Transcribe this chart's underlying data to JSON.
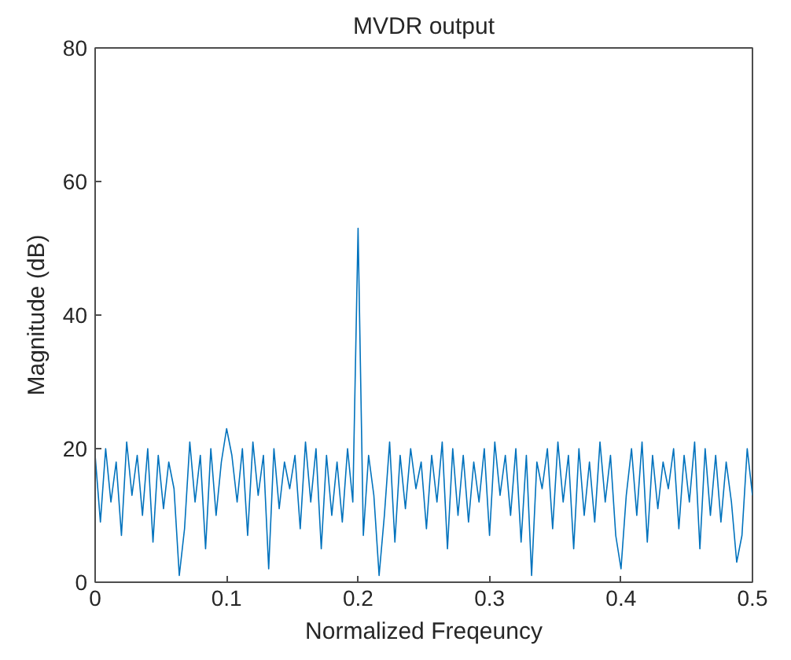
{
  "chart_data": {
    "type": "line",
    "title": "MVDR output",
    "xlabel": "Normalized Freqeuncy",
    "ylabel": "Magnitude (dB)",
    "xlim": [
      0,
      0.5
    ],
    "ylim": [
      0,
      80
    ],
    "xticks": [
      0,
      0.1,
      0.2,
      0.3,
      0.4,
      0.5
    ],
    "yticks": [
      0,
      20,
      40,
      60,
      80
    ],
    "marker": "none",
    "line_style": "solid",
    "x": [
      0,
      0.004,
      0.008,
      0.012,
      0.016,
      0.02,
      0.024,
      0.028,
      0.032,
      0.036,
      0.04,
      0.044,
      0.048,
      0.052,
      0.056,
      0.06,
      0.064,
      0.068,
      0.072,
      0.076,
      0.08,
      0.084,
      0.088,
      0.092,
      0.096,
      0.1,
      0.104,
      0.108,
      0.112,
      0.116,
      0.12,
      0.124,
      0.128,
      0.132,
      0.136,
      0.14,
      0.144,
      0.148,
      0.152,
      0.156,
      0.16,
      0.164,
      0.168,
      0.172,
      0.176,
      0.18,
      0.184,
      0.188,
      0.192,
      0.196,
      0.2,
      0.204,
      0.208,
      0.212,
      0.216,
      0.22,
      0.224,
      0.228,
      0.232,
      0.236,
      0.24,
      0.244,
      0.248,
      0.252,
      0.256,
      0.26,
      0.264,
      0.268,
      0.272,
      0.276,
      0.28,
      0.284,
      0.288,
      0.292,
      0.296,
      0.3,
      0.304,
      0.308,
      0.312,
      0.316,
      0.32,
      0.324,
      0.328,
      0.332,
      0.336,
      0.34,
      0.344,
      0.348,
      0.352,
      0.356,
      0.36,
      0.364,
      0.368,
      0.372,
      0.376,
      0.38,
      0.384,
      0.388,
      0.392,
      0.396,
      0.4,
      0.404,
      0.408,
      0.412,
      0.416,
      0.42,
      0.424,
      0.428,
      0.432,
      0.436,
      0.44,
      0.444,
      0.448,
      0.452,
      0.456,
      0.46,
      0.464,
      0.468,
      0.472,
      0.476,
      0.48,
      0.484,
      0.488,
      0.492,
      0.496,
      0.5
    ],
    "series": [
      {
        "color": "#0072bd",
        "values": [
          19,
          9,
          20,
          12,
          18,
          7,
          21,
          13,
          19,
          10,
          20,
          6,
          19,
          11,
          18,
          14,
          1,
          8,
          21,
          12,
          19,
          5,
          20,
          10,
          18,
          23,
          19,
          12,
          20,
          7,
          21,
          13,
          19,
          2,
          20,
          11,
          18,
          14,
          19,
          8,
          21,
          12,
          20,
          5,
          19,
          10,
          18,
          9,
          20,
          12,
          53,
          7,
          19,
          13,
          1,
          10,
          21,
          6,
          19,
          11,
          20,
          14,
          18,
          8,
          19,
          12,
          21,
          5,
          20,
          10,
          19,
          9,
          18,
          12,
          20,
          7,
          21,
          13,
          19,
          10,
          20,
          6,
          19,
          1,
          18,
          14,
          20,
          8,
          21,
          12,
          19,
          5,
          20,
          10,
          18,
          9,
          21,
          12,
          19,
          7,
          2,
          13,
          20,
          10,
          21,
          6,
          19,
          11,
          18,
          14,
          20,
          8,
          19,
          12,
          21,
          5,
          20,
          10,
          19,
          9,
          18,
          12,
          3,
          7,
          20,
          13
        ]
      }
    ]
  }
}
